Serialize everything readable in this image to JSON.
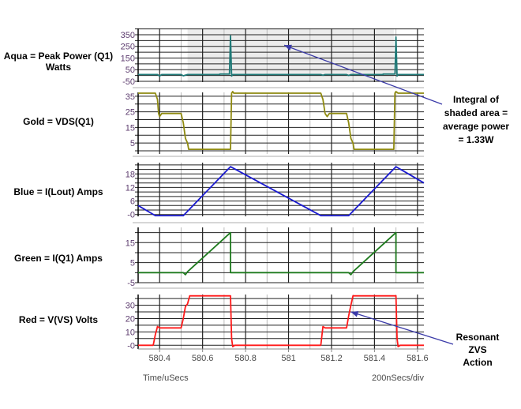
{
  "chart_data": {
    "type": "line",
    "xlabel": "Time/uSecs",
    "scale_label": "200nSecs/div",
    "xlim": [
      580.3,
      581.63
    ],
    "x_ticks": [
      "580.4",
      "580.6",
      "580.8",
      "581",
      "581.2",
      "581.4",
      "581.6"
    ],
    "x_tick_values": [
      580.4,
      580.6,
      580.8,
      581.0,
      581.2,
      581.4,
      581.6
    ],
    "panels": [
      {
        "name": "Aqua = Peak Power (Q1)",
        "unit_line": "Watts",
        "color": "#1f7a78",
        "ylim": [
          -57,
          404
        ],
        "grid_step": 50,
        "y_ticks": [
          "350",
          "250",
          "150",
          "50",
          "-50"
        ],
        "y_tick_values": [
          350,
          250,
          150,
          50,
          -50
        ],
        "shaded_x": [
          580.53,
          581.49
        ],
        "points": [
          [
            580.3,
            8
          ],
          [
            580.39,
            8
          ],
          [
            580.4,
            -5
          ],
          [
            580.41,
            8
          ],
          [
            580.5,
            8
          ],
          [
            580.51,
            -3
          ],
          [
            580.53,
            8
          ],
          [
            580.68,
            8
          ],
          [
            580.68,
            12
          ],
          [
            580.725,
            12
          ],
          [
            580.73,
            340
          ],
          [
            580.735,
            -5
          ],
          [
            580.74,
            8
          ],
          [
            581.15,
            8
          ],
          [
            581.16,
            2
          ],
          [
            581.17,
            8
          ],
          [
            581.27,
            8
          ],
          [
            581.28,
            0
          ],
          [
            581.29,
            8
          ],
          [
            581.44,
            8
          ],
          [
            581.44,
            12
          ],
          [
            581.495,
            12
          ],
          [
            581.5,
            330
          ],
          [
            581.505,
            -5
          ],
          [
            581.51,
            8
          ],
          [
            581.63,
            8
          ]
        ]
      },
      {
        "name": "Gold = VDS(Q1)",
        "color": "#8f8a10",
        "ylim": [
          -2,
          37.5
        ],
        "grid_step": 5,
        "y_ticks": [
          "35",
          "25",
          "15",
          "5"
        ],
        "y_tick_values": [
          35,
          25,
          15,
          5
        ],
        "points": [
          [
            580.3,
            37
          ],
          [
            580.38,
            37
          ],
          [
            580.39,
            33
          ],
          [
            580.395,
            24
          ],
          [
            580.4,
            22
          ],
          [
            580.41,
            24
          ],
          [
            580.5,
            24
          ],
          [
            580.51,
            18
          ],
          [
            580.52,
            8
          ],
          [
            580.53,
            5
          ],
          [
            580.535,
            1
          ],
          [
            580.73,
            1
          ],
          [
            580.735,
            37
          ],
          [
            580.74,
            38
          ],
          [
            580.745,
            37
          ],
          [
            581.15,
            37
          ],
          [
            581.16,
            33
          ],
          [
            581.17,
            24
          ],
          [
            581.18,
            22
          ],
          [
            581.19,
            24
          ],
          [
            581.27,
            24
          ],
          [
            581.28,
            18
          ],
          [
            581.29,
            8
          ],
          [
            581.3,
            5
          ],
          [
            581.305,
            1
          ],
          [
            581.49,
            1
          ],
          [
            581.495,
            37
          ],
          [
            581.5,
            38
          ],
          [
            581.51,
            37
          ],
          [
            581.63,
            37
          ]
        ]
      },
      {
        "name": "Blue = I(Lout) Amps",
        "color": "#1a1ad0",
        "ylim": [
          -0.8,
          23
        ],
        "grid_step": 2,
        "y_ticks": [
          "18",
          "12",
          "6",
          "-0"
        ],
        "y_tick_values": [
          18,
          12,
          6,
          0
        ],
        "points": [
          [
            580.3,
            4
          ],
          [
            580.38,
            -0.5
          ],
          [
            580.51,
            -0.5
          ],
          [
            580.73,
            21.2
          ],
          [
            581.15,
            -0.5
          ],
          [
            581.28,
            -0.5
          ],
          [
            581.5,
            21.2
          ],
          [
            581.63,
            14
          ]
        ]
      },
      {
        "name": "Green = I(Q1) Amps",
        "color": "#1d7a1d",
        "ylim": [
          -5,
          22.6
        ],
        "grid_step": 5,
        "y_ticks": [
          "15",
          "5",
          "-5"
        ],
        "y_tick_values": [
          15,
          5,
          -5
        ],
        "points": [
          [
            580.3,
            0
          ],
          [
            580.51,
            0
          ],
          [
            580.52,
            -1
          ],
          [
            580.53,
            0.5
          ],
          [
            580.73,
            20
          ],
          [
            580.73,
            0
          ],
          [
            581.28,
            0
          ],
          [
            581.29,
            -1
          ],
          [
            581.3,
            0.5
          ],
          [
            581.5,
            20
          ],
          [
            581.5,
            0
          ],
          [
            581.63,
            0
          ]
        ]
      },
      {
        "name": "Red = V(VS) Volts",
        "color": "#ff1a1a",
        "ylim": [
          -2.8,
          38
        ],
        "grid_step": 5,
        "y_ticks": [
          "30",
          "20",
          "10",
          "-0"
        ],
        "y_tick_values": [
          30,
          20,
          10,
          0
        ],
        "points": [
          [
            580.3,
            0
          ],
          [
            580.37,
            0
          ],
          [
            580.38,
            8
          ],
          [
            580.39,
            14
          ],
          [
            580.4,
            13
          ],
          [
            580.5,
            13
          ],
          [
            580.51,
            20
          ],
          [
            580.52,
            29
          ],
          [
            580.53,
            31
          ],
          [
            580.54,
            37
          ],
          [
            580.73,
            37
          ],
          [
            580.735,
            5
          ],
          [
            580.74,
            -1
          ],
          [
            580.75,
            0
          ],
          [
            581.15,
            0
          ],
          [
            581.16,
            14
          ],
          [
            581.17,
            13
          ],
          [
            581.27,
            13
          ],
          [
            581.28,
            22
          ],
          [
            581.29,
            30
          ],
          [
            581.3,
            37
          ],
          [
            581.5,
            37
          ],
          [
            581.505,
            5
          ],
          [
            581.51,
            -1
          ],
          [
            581.52,
            0
          ],
          [
            581.63,
            0
          ]
        ]
      }
    ],
    "annotations": [
      {
        "lines": [
          "Integral of",
          "shaded area =",
          "average power",
          "= 1.33W"
        ],
        "target_panel": 0,
        "target": [
          580.98,
          260
        ]
      },
      {
        "lines": [
          "Resonant",
          "ZVS",
          "Action"
        ],
        "target_panel": 4,
        "target": [
          581.29,
          25
        ]
      }
    ],
    "arrow_color": "#3a3aa8"
  }
}
